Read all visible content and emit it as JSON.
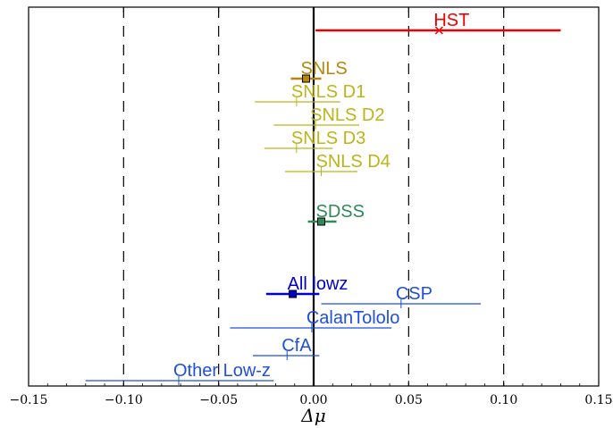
{
  "chart_data": {
    "type": "scatter",
    "xlabel": "Δμ",
    "xlim": [
      -0.15,
      0.15
    ],
    "x_ticks": [
      -0.15,
      -0.1,
      -0.05,
      0.0,
      0.05,
      0.1,
      0.15
    ],
    "x_tick_labels": [
      "−0.15",
      "−0.10",
      "−0.05",
      "0.00",
      "0.05",
      "0.10",
      "0.15"
    ],
    "reference_lines": [
      -0.1,
      -0.05,
      0.05,
      0.1
    ],
    "zero_line": 0.0,
    "points": [
      {
        "label": "HST",
        "value": 0.066,
        "lo": 0.001,
        "hi": 0.13,
        "color": "#ee0000",
        "marker": "x",
        "style": "thick"
      },
      {
        "label": "SNLS",
        "value": -0.004,
        "lo": -0.012,
        "hi": 0.004,
        "color": "#b8860b",
        "marker": "square",
        "style": "thick"
      },
      {
        "label": "SNLS D1",
        "value": -0.009,
        "lo": -0.031,
        "hi": 0.014,
        "color": "#bdb417",
        "marker": "tick",
        "style": "thin"
      },
      {
        "label": "SNLS D2",
        "value": 0.001,
        "lo": -0.021,
        "hi": 0.024,
        "color": "#bdb417",
        "marker": "tick",
        "style": "thin"
      },
      {
        "label": "SNLS D3",
        "value": -0.009,
        "lo": -0.026,
        "hi": 0.01,
        "color": "#bdb417",
        "marker": "tick",
        "style": "thin"
      },
      {
        "label": "SNLS D4",
        "value": 0.004,
        "lo": -0.015,
        "hi": 0.023,
        "color": "#bdb417",
        "marker": "tick",
        "style": "thin"
      },
      {
        "label": "SDSS",
        "value": 0.004,
        "lo": -0.003,
        "hi": 0.012,
        "color": "#2e8b57",
        "marker": "square",
        "style": "thick"
      },
      {
        "label": "All lowz",
        "value": -0.011,
        "lo": -0.025,
        "hi": 0.003,
        "color": "#0000cc",
        "marker": "square",
        "style": "thick"
      },
      {
        "label": "CSP",
        "value": 0.046,
        "lo": 0.004,
        "hi": 0.088,
        "color": "#1f4fdd",
        "marker": "tick",
        "style": "thin"
      },
      {
        "label": "CalanTololo",
        "value": -0.001,
        "lo": -0.044,
        "hi": 0.041,
        "color": "#1f4fdd",
        "marker": "tick",
        "style": "thin"
      },
      {
        "label": "CfA",
        "value": -0.014,
        "lo": -0.032,
        "hi": 0.003,
        "color": "#1f4fdd",
        "marker": "tick",
        "style": "thin"
      },
      {
        "label": "Other Low-z",
        "value": -0.071,
        "lo": -0.12,
        "hi": -0.021,
        "color": "#1f4fdd",
        "marker": "tick",
        "style": "thin"
      }
    ]
  }
}
